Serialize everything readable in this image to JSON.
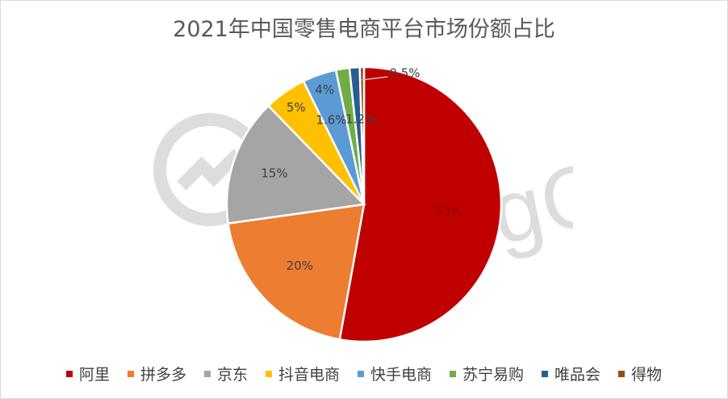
{
  "chart_data": {
    "type": "pie",
    "title": "2021年中国零售电商平台市场份额占比",
    "slices": [
      {
        "name": "阿里",
        "value": 53,
        "label": "53%",
        "color": "#c00000"
      },
      {
        "name": "拼多多",
        "value": 20,
        "label": "20%",
        "color": "#ed7d31"
      },
      {
        "name": "京东",
        "value": 15,
        "label": "15%",
        "color": "#a5a5a5"
      },
      {
        "name": "抖音电商",
        "value": 5,
        "label": "5%",
        "color": "#ffc000"
      },
      {
        "name": "快手电商",
        "value": 4,
        "label": "4%",
        "color": "#5b9bd5"
      },
      {
        "name": "苏宁易购",
        "value": 1.6,
        "label": "1.6%",
        "color": "#70ad47"
      },
      {
        "name": "唯品会",
        "value": 1.2,
        "label": "1.2%",
        "color": "#255e91"
      },
      {
        "name": "得物",
        "value": 0.5,
        "label": "0.5%",
        "color": "#9e480e"
      }
    ],
    "legend_position": "bottom",
    "start_angle": "12 o'clock, clockwise"
  },
  "watermark_text": "TradingGo"
}
